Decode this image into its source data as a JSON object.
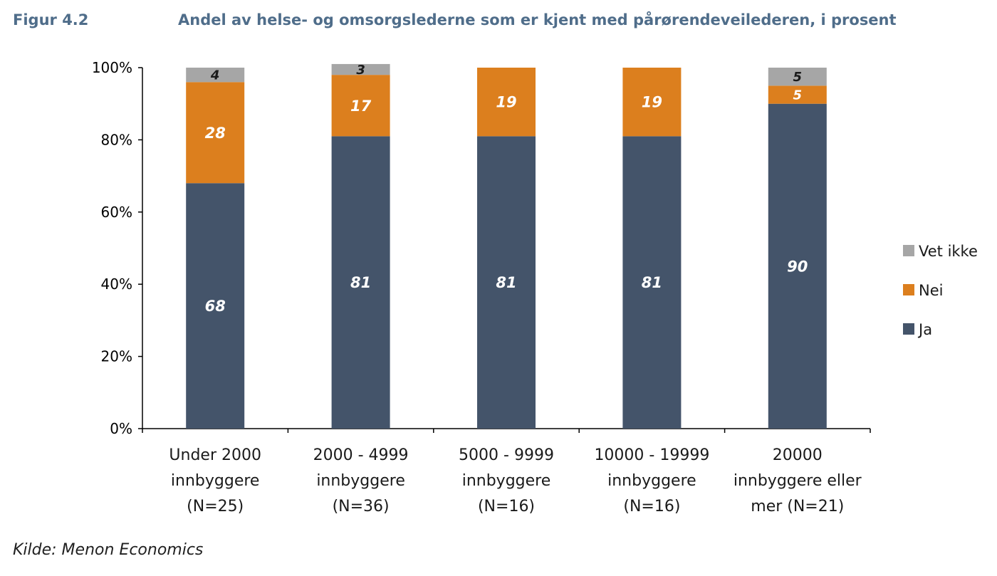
{
  "figure_label": "Figur 4.2",
  "source_note": "Kilde: Menon Economics",
  "colors": {
    "ja": "#44546a",
    "nei": "#dc7f1e",
    "vet_ikke": "#a6a6a6",
    "title": "#4f6d8a"
  },
  "chart_data": {
    "type": "bar",
    "stacked": true,
    "title": "Andel av helse- og omsorgslederne som er kjent med pårørendeveilederen, i prosent",
    "xlabel": "",
    "ylabel": "",
    "ylim": [
      0,
      100
    ],
    "yticks": [
      "0%",
      "20%",
      "40%",
      "60%",
      "80%",
      "100%"
    ],
    "categories": [
      [
        "Under 2000",
        "innbyggere",
        "(N=25)"
      ],
      [
        "2000 - 4999",
        "innbyggere",
        "(N=36)"
      ],
      [
        "5000 - 9999",
        "innbyggere",
        "(N=16)"
      ],
      [
        "10000 - 19999",
        "innbyggere",
        "(N=16)"
      ],
      [
        "20000",
        "innbyggere eller",
        "mer (N=21)"
      ]
    ],
    "series": [
      {
        "name": "Ja",
        "color": "#44546a",
        "label_color": "#ffffff",
        "values": [
          68,
          81,
          81,
          81,
          90
        ],
        "labels": [
          "68",
          "81",
          "81",
          "81",
          "90"
        ]
      },
      {
        "name": "Nei",
        "color": "#dc7f1e",
        "label_color": "#ffffff",
        "values": [
          28,
          17,
          19,
          19,
          5
        ],
        "labels": [
          "28",
          "17",
          "19",
          "19",
          "5"
        ]
      },
      {
        "name": "Vet ikke",
        "color": "#a6a6a6",
        "label_color": "#1a1a1a",
        "values": [
          4,
          3,
          0,
          0,
          5
        ],
        "labels": [
          "4",
          "3",
          "",
          "",
          "5"
        ]
      }
    ],
    "legend": {
      "position": "right",
      "order": [
        "Vet ikke",
        "Nei",
        "Ja"
      ]
    },
    "grid": false
  }
}
